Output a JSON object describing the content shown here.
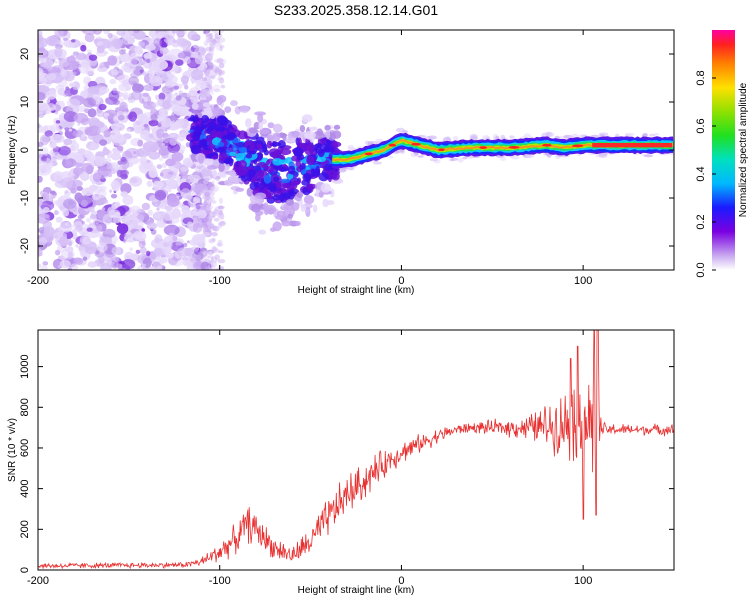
{
  "title": "S233.2025.358.12.14.G01",
  "chart_data": [
    {
      "type": "heatmap",
      "name": "spectrogram",
      "xlabel": "Height of straight line (km)",
      "ylabel": "Frequency (Hz)",
      "xlim": [
        -200,
        150
      ],
      "ylim": [
        -25,
        25
      ],
      "xticks": [
        -200,
        -100,
        0,
        100
      ],
      "xticklabels": [
        "-200",
        "-100",
        "0",
        "100"
      ],
      "yticks": [
        -20,
        -10,
        0,
        10,
        20
      ],
      "yticklabels": [
        "-20",
        "-10",
        "0",
        "10",
        "20"
      ],
      "ridge": {
        "x": [
          -120,
          -110,
          -100,
          -90,
          -80,
          -70,
          -60,
          -50,
          -40,
          -30,
          -20,
          -10,
          0,
          10,
          20,
          40,
          60,
          80,
          90,
          100,
          110,
          150
        ],
        "y": [
          4,
          3,
          2,
          0,
          -3,
          -5,
          -4,
          -3,
          -2,
          -2,
          -1,
          0,
          2,
          1,
          0,
          0.5,
          0.5,
          1,
          0.5,
          1,
          1,
          1
        ]
      },
      "colorbar": {
        "label": "Normalized spectral amplitude",
        "range": [
          0,
          1
        ],
        "ticks": [
          0.0,
          0.2,
          0.4,
          0.6,
          0.8
        ],
        "ticklabels": [
          "0.0",
          "0.2",
          "0.4",
          "0.6",
          "0.8"
        ]
      }
    },
    {
      "type": "line",
      "name": "snr",
      "xlabel": "Height of straight line (km)",
      "ylabel": "SNR (10 * v/v)",
      "xlim": [
        -200,
        150
      ],
      "ylim": [
        0,
        1180
      ],
      "xticks": [
        -200,
        -100,
        0,
        100
      ],
      "xticklabels": [
        "-200",
        "-100",
        "0",
        "100"
      ],
      "yticks": [
        0,
        200,
        400,
        600,
        800,
        1000
      ],
      "yticklabels": [
        "0",
        "200",
        "400",
        "600",
        "800",
        "1000"
      ],
      "color": "#e83030",
      "envelope": {
        "x": [
          -200,
          -120,
          -110,
          -100,
          -90,
          -85,
          -80,
          -70,
          -60,
          -50,
          -40,
          -30,
          -20,
          -10,
          0,
          10,
          20,
          30,
          40,
          50,
          60,
          70,
          80,
          90,
          95,
          100,
          105,
          108,
          110,
          120,
          150
        ],
        "y": [
          20,
          25,
          40,
          90,
          160,
          230,
          200,
          110,
          70,
          140,
          260,
          370,
          440,
          520,
          580,
          620,
          660,
          690,
          700,
          700,
          700,
          700,
          710,
          720,
          760,
          760,
          700,
          700,
          690,
          690,
          690
        ],
        "spread": [
          15,
          15,
          25,
          60,
          80,
          100,
          90,
          60,
          50,
          80,
          110,
          110,
          100,
          80,
          60,
          50,
          40,
          30,
          30,
          40,
          50,
          70,
          120,
          180,
          260,
          300,
          300,
          250,
          40,
          30,
          30
        ]
      },
      "spikes": [
        {
          "x": 93,
          "y": 1040
        },
        {
          "x": 97,
          "y": 1100
        },
        {
          "x": 106,
          "y": 1180
        },
        {
          "x": 108,
          "y": 1180
        },
        {
          "x": 100,
          "y": 250
        },
        {
          "x": 107,
          "y": 270
        }
      ]
    }
  ]
}
